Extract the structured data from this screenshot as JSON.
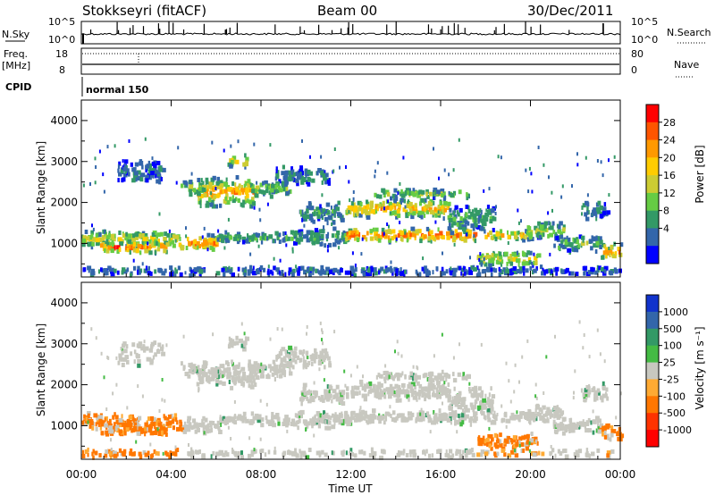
{
  "header": {
    "station": "Stokkseyri (fitACF)",
    "beam": "Beam 00",
    "date": "30/Dec/2011"
  },
  "top_panels": {
    "nsky_label": "N.Sky",
    "nsky_ticks": [
      "10^5",
      "10^0"
    ],
    "nsearch_label": "N.Search",
    "nsearch_ticks": [
      "10^5",
      "10^0"
    ],
    "freq_label": "Freq.",
    "freq_unit": "[MHz]",
    "freq_ticks": [
      "18",
      "8"
    ],
    "nave_label": "Nave",
    "nave_ticks": [
      "80",
      "0"
    ],
    "cpid_label": "CPID",
    "cpid_value": "normal 150"
  },
  "chart_data": [
    {
      "type": "heatmap",
      "name": "power",
      "ylabel": "Slant Range [km]",
      "yticks": [
        "4000",
        "3000",
        "2000",
        "1000"
      ],
      "colorbar_label": "Power [dB]",
      "colorbar_ticks": [
        "28",
        "24",
        "20",
        "16",
        "12",
        "8",
        "4"
      ],
      "colorbar_colors": [
        "#ff0000",
        "#ff5500",
        "#ff9900",
        "#ffcc00",
        "#cccc33",
        "#66cc44",
        "#339966",
        "#3366aa",
        "#0000ff"
      ],
      "ylim": [
        180,
        4500
      ],
      "xlim": [
        0,
        24
      ]
    },
    {
      "type": "heatmap",
      "name": "velocity",
      "ylabel": "Slant Range [km]",
      "yticks": [
        "4000",
        "3000",
        "2000",
        "1000"
      ],
      "colorbar_label": "Velocity [m s⁻¹]",
      "colorbar_ticks": [
        "1000",
        "500",
        "100",
        "25",
        "-25",
        "-100",
        "-500",
        "-1000"
      ],
      "colorbar_colors": [
        "#1133cc",
        "#3366aa",
        "#339966",
        "#44bb44",
        "#c8c8c0",
        "#ffaa33",
        "#ff7700",
        "#ff3300",
        "#ff0000"
      ],
      "ylim": [
        180,
        4500
      ],
      "xlim": [
        0,
        24
      ]
    }
  ],
  "x_axis": {
    "ticks": [
      "00:00",
      "04:00",
      "08:00",
      "12:00",
      "16:00",
      "20:00",
      "00:00"
    ],
    "label": "Time UT"
  }
}
